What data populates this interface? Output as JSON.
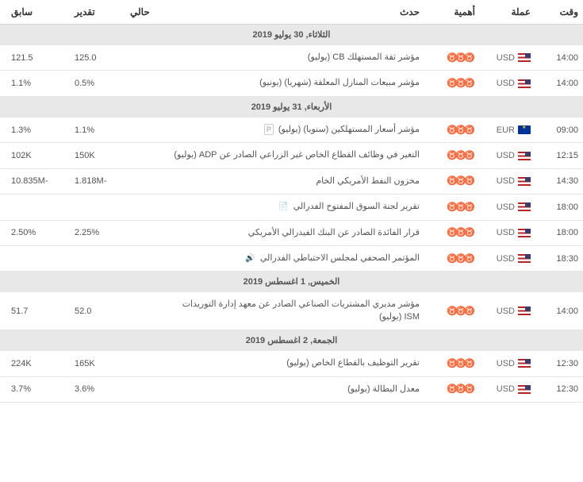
{
  "header": {
    "time": "وقت",
    "currency": "عملة",
    "importance": "أهمية",
    "event": "حدث",
    "actual": "حالي",
    "forecast": "تقدير",
    "previous": "سابق"
  },
  "sections": [
    {
      "date": "الثلاثاء, 30 يوليو 2019",
      "rows": [
        {
          "time": "14:00",
          "cur": "USD",
          "flag": "us",
          "imp": 3,
          "event": "مؤشر ثقة المستهلك CB (يوليو)",
          "act": "",
          "est": "125.0",
          "prev": "121.5"
        },
        {
          "time": "14:00",
          "cur": "USD",
          "flag": "us",
          "imp": 3,
          "event": "مؤشر مبيعات المنازل المعلقة (شهريا) (يونيو)",
          "act": "",
          "est": "0.5%",
          "prev": "1.1%"
        }
      ]
    },
    {
      "date": "الأربعاء, 31 يوليو 2019",
      "rows": [
        {
          "time": "09:00",
          "cur": "EUR",
          "flag": "eu",
          "imp": 3,
          "event": "مؤشر أسعار المستهلكين (سنويا) (يوليو)",
          "badge": "P",
          "act": "",
          "est": "1.1%",
          "prev": "1.3%"
        },
        {
          "time": "12:15",
          "cur": "USD",
          "flag": "us",
          "imp": 3,
          "event": "التغير في وظائف القطاع الخاص غير الزراعي الصادر عن ADP (يوليو)",
          "act": "",
          "est": "150K",
          "prev": "102K"
        },
        {
          "time": "14:30",
          "cur": "USD",
          "flag": "us",
          "imp": 3,
          "event": "مخزون النفط الأمريكي الخام",
          "act": "",
          "est": "-1.818M",
          "prev": "-10.835M"
        },
        {
          "time": "18:00",
          "cur": "USD",
          "flag": "us",
          "imp": 3,
          "event": "تقرير لجنة السوق المفتوح الفدرالي",
          "icon": "doc",
          "act": "",
          "est": "",
          "prev": ""
        },
        {
          "time": "18:00",
          "cur": "USD",
          "flag": "us",
          "imp": 3,
          "event": "قرار الفائدة الصادر عن البنك الفيدرالي الأمريكي",
          "act": "",
          "est": "2.25%",
          "prev": "2.50%"
        },
        {
          "time": "18:30",
          "cur": "USD",
          "flag": "us",
          "imp": 3,
          "event": "المؤتمر الصحفي لمجلس الاحتياطي الفدرالي",
          "icon": "speech",
          "act": "",
          "est": "",
          "prev": ""
        }
      ]
    },
    {
      "date": "الخميس, 1 اغسطس 2019",
      "rows": [
        {
          "time": "14:00",
          "cur": "USD",
          "flag": "us",
          "imp": 3,
          "event": "مؤشر مديري المشتريات الصناعي الصادر عن معهد إدارة التوريدات ISM (يوليو)",
          "act": "",
          "est": "52.0",
          "prev": "51.7"
        }
      ]
    },
    {
      "date": "الجمعة, 2 اغسطس 2019",
      "rows": [
        {
          "time": "12:30",
          "cur": "USD",
          "flag": "us",
          "imp": 3,
          "event": "تقرير التوظيف بالقطاع الخاص (يوليو)",
          "act": "",
          "est": "165K",
          "prev": "224K"
        },
        {
          "time": "12:30",
          "cur": "USD",
          "flag": "us",
          "imp": 3,
          "event": "معدل البطالة (يوليو)",
          "act": "",
          "est": "3.6%",
          "prev": "3.7%"
        }
      ]
    }
  ]
}
